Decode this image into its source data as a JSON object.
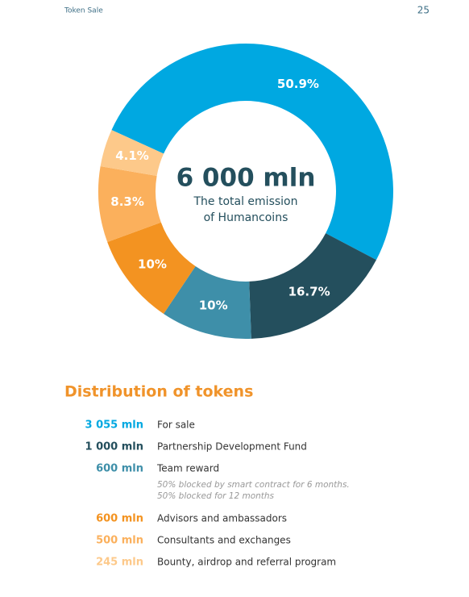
{
  "header": {
    "section": "Token Sale",
    "page": "25"
  },
  "chart_data": {
    "type": "pie",
    "donut": true,
    "center_title": "6 000 mln",
    "center_subtitle": [
      "The total emission",
      "of Humancoins"
    ],
    "values": [
      50.9,
      16.7,
      10,
      10,
      8.3,
      4.1
    ],
    "value_labels": [
      "50.9%",
      "16.7%",
      "10%",
      "10%",
      "8.3%",
      "4.1%"
    ],
    "colors": [
      "#00a8e1",
      "#244f5d",
      "#3e8fa9",
      "#f39321",
      "#fbb05c",
      "#fdc98a"
    ]
  },
  "distribution": {
    "title": "Distribution of tokens",
    "rows": [
      {
        "amount": "3 055 mln",
        "label": "For sale",
        "color": "#00a8e1"
      },
      {
        "amount": "1 000 mln",
        "label": "Partnership Development Fund",
        "color": "#244f5d"
      },
      {
        "amount": "600 mln",
        "label": "Team reward",
        "color": "#3e8fa9",
        "notes": [
          "50% blocked by smart contract for 6 months.",
          "50% blocked for 12 months"
        ]
      },
      {
        "amount": "600 mln",
        "label": "Advisors and ambassadors",
        "color": "#f39321"
      },
      {
        "amount": "500 mln",
        "label": "Consultants and exchanges",
        "color": "#fbb05c"
      },
      {
        "amount": "245 mln",
        "label": "Bounty, airdrop and referral program",
        "color": "#fdc98a"
      }
    ]
  }
}
